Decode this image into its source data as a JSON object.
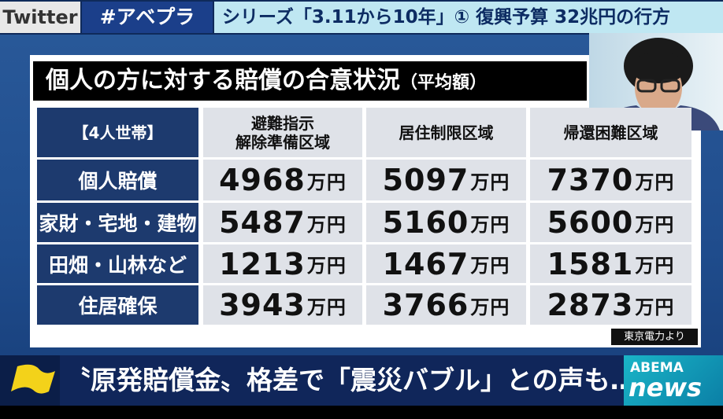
{
  "header": {
    "tag": "Twitter",
    "hashtag": "#アベプラ",
    "series": "シリーズ「3.11から10年」① 復興予算 32兆円の行方"
  },
  "panel": {
    "title": "個人の方に対する賠償の合意状況",
    "title_note": "（平均額）",
    "source": "東京電力より"
  },
  "table": {
    "corner": "【4人世帯】",
    "columns": [
      [
        "避難指示",
        "解除準備区域"
      ],
      [
        "居住制限区域"
      ],
      [
        "帰還困難区域"
      ]
    ],
    "rows": [
      {
        "label": "個人賠償",
        "cells": [
          {
            "value": 4968,
            "unit": "万円"
          },
          {
            "value": 5097,
            "unit": "万円"
          },
          {
            "value": 7370,
            "unit": "万円"
          }
        ]
      },
      {
        "label": "家財・宅地・建物",
        "cells": [
          {
            "value": 5487,
            "unit": "万円"
          },
          {
            "value": 5160,
            "unit": "万円"
          },
          {
            "value": 5600,
            "unit": "万円"
          }
        ]
      },
      {
        "label": "田畑・山林など",
        "cells": [
          {
            "value": 1213,
            "unit": "万円"
          },
          {
            "value": 1467,
            "unit": "万円"
          },
          {
            "value": 1581,
            "unit": "万円"
          }
        ]
      },
      {
        "label": "住居確保",
        "cells": [
          {
            "value": 3943,
            "unit": "万円"
          },
          {
            "value": 3766,
            "unit": "万円"
          },
          {
            "value": 2873,
            "unit": "万円"
          }
        ]
      }
    ]
  },
  "ticker": "〝原発賠償金〟格差で「震災バブル」との声も…",
  "logo": {
    "top": "ABEMA",
    "bottom": "news"
  }
}
